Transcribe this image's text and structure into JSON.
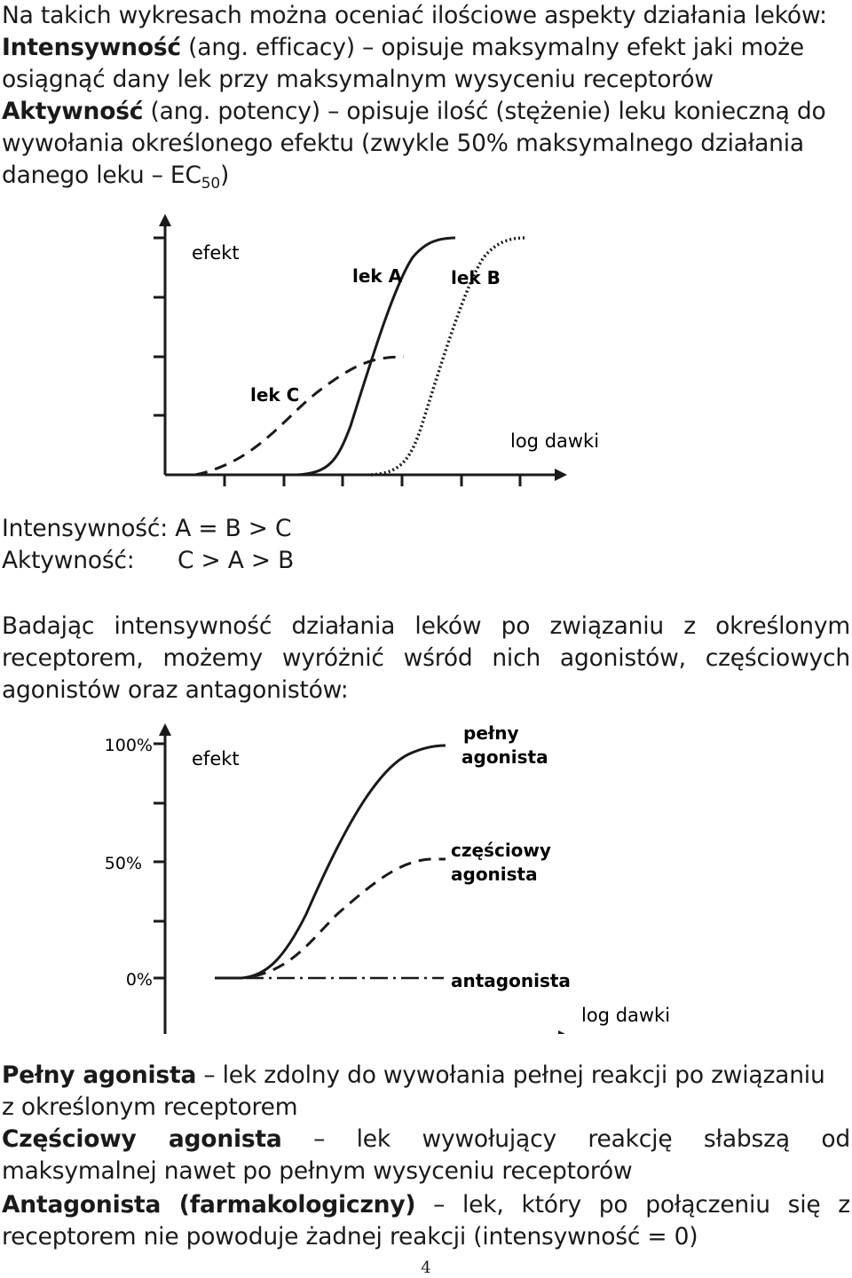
{
  "intro": {
    "line1": "Na takich wykresach można oceniać ilościowe aspekty działania leków:",
    "efficacy_term": "Intensywność",
    "efficacy_rest": " (ang. efficacy) – opisuje maksymalny efekt jaki może",
    "efficacy_line2": "osiągnąć dany lek przy maksymalnym wysyceniu receptorów",
    "potency_term": "Aktywność",
    "potency_rest": " (ang. potency) – opisuje ilość (stężenie) leku konieczną do",
    "potency_line2": "wywołania określonego efektu (zwykle 50% maksymalnego działania",
    "potency_line3_pre": "danego leku – EC",
    "potency_line3_sub": "50",
    "potency_line3_post": ")"
  },
  "figure1": {
    "y_label": "efekt",
    "x_label": "log dawki",
    "curve_a_label": "lek A",
    "curve_b_label": "lek B",
    "curve_c_label": "lek C"
  },
  "comparison": {
    "intensity": "Intensywność: A = B > C",
    "activity_label": "Aktywność:",
    "activity_value": "C > A > B"
  },
  "paragraph2": {
    "line1": "Badając intensywność działania leków po związaniu z określonym",
    "line2": "receptorem, możemy wyróżnić wśród nich agonistów, częściowych",
    "line3": "agonistów oraz antagonistów:"
  },
  "figure2": {
    "y_label": "efekt",
    "x_label": "log dawki",
    "tick_100": "100%",
    "tick_50": "50%",
    "tick_0": "0%",
    "full_agonist_line1": "pełny",
    "full_agonist_line2": "agonista",
    "partial_agonist_line1": "częściowy",
    "partial_agonist_line2": "agonista",
    "antagonist": "antagonista"
  },
  "definitions": {
    "full_term": "Pełny agonista",
    "full_rest1": " – lek zdolny do wywołania pełnej reakcji po związaniu",
    "full_rest2": "z określonym receptorem",
    "partial_term": "Częściowy agonista",
    "partial_rest1": " – lek wywołujący reakcję słabszą od",
    "partial_rest2": "maksymalnej nawet po pełnym wysyceniu receptorów",
    "antagonist_term": "Antagonista (farmakologiczny)",
    "antagonist_rest1": " – lek, który po połączeniu się z",
    "antagonist_rest2": "receptorem nie powoduje żadnej reakcji (intensywność = 0)"
  },
  "page_number": "4"
}
